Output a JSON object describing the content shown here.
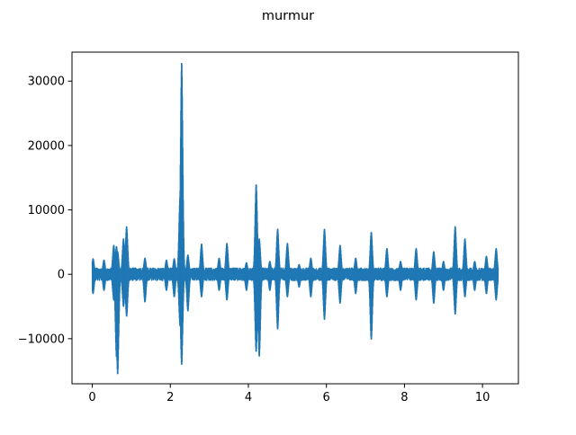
{
  "figure": {
    "title": "murmur"
  },
  "chart_data": {
    "type": "line",
    "title": "murmur",
    "xlabel": "",
    "ylabel": "",
    "xlim": [
      -0.52,
      10.92
    ],
    "ylim": [
      -17000,
      34500
    ],
    "xticks": [
      0,
      2,
      4,
      6,
      8,
      10
    ],
    "xtick_labels": [
      "0",
      "2",
      "4",
      "6",
      "8",
      "10"
    ],
    "yticks": [
      -10000,
      0,
      10000,
      20000,
      30000
    ],
    "ytick_labels": [
      "−10000",
      "0",
      "10000",
      "20000",
      "30000"
    ],
    "grid": false,
    "legend": "none",
    "series": [
      {
        "color": "#1f77b4",
        "x_range": [
          0,
          10.4
        ],
        "baseline_amplitude": 700,
        "peaks": [
          {
            "x": 0.02,
            "max": 2400,
            "min": -3000
          },
          {
            "x": 0.3,
            "max": 2200,
            "min": -2500
          },
          {
            "x": 0.55,
            "max": 4500,
            "min": -4000
          },
          {
            "x": 0.62,
            "max": 4300,
            "min": -12800
          },
          {
            "x": 0.65,
            "max": 3500,
            "min": -15500
          },
          {
            "x": 0.8,
            "max": 5500,
            "min": -5000
          },
          {
            "x": 0.88,
            "max": 7400,
            "min": -6500
          },
          {
            "x": 1.35,
            "max": 2500,
            "min": -4300
          },
          {
            "x": 1.9,
            "max": 2200,
            "min": -2500
          },
          {
            "x": 2.1,
            "max": 2400,
            "min": -3500
          },
          {
            "x": 2.25,
            "max": 12000,
            "min": -8000
          },
          {
            "x": 2.29,
            "max": 32800,
            "min": -14000
          },
          {
            "x": 2.45,
            "max": 3000,
            "min": -5700
          },
          {
            "x": 2.8,
            "max": 4700,
            "min": -3500
          },
          {
            "x": 3.25,
            "max": 2500,
            "min": -2500
          },
          {
            "x": 3.45,
            "max": 4800,
            "min": -4000
          },
          {
            "x": 3.95,
            "max": 1800,
            "min": -2500
          },
          {
            "x": 4.2,
            "max": 13900,
            "min": -12000
          },
          {
            "x": 4.28,
            "max": 5500,
            "min": -12700
          },
          {
            "x": 4.55,
            "max": 2000,
            "min": -2500
          },
          {
            "x": 4.75,
            "max": 7000,
            "min": -8500
          },
          {
            "x": 5.0,
            "max": 4800,
            "min": -3500
          },
          {
            "x": 5.3,
            "max": 1500,
            "min": -2000
          },
          {
            "x": 5.6,
            "max": 2500,
            "min": -3500
          },
          {
            "x": 5.95,
            "max": 7000,
            "min": -7000
          },
          {
            "x": 6.35,
            "max": 4500,
            "min": -4500
          },
          {
            "x": 6.75,
            "max": 2500,
            "min": -3000
          },
          {
            "x": 7.15,
            "max": 6500,
            "min": -10100
          },
          {
            "x": 7.55,
            "max": 4000,
            "min": -3500
          },
          {
            "x": 7.9,
            "max": 2000,
            "min": -2500
          },
          {
            "x": 8.3,
            "max": 4000,
            "min": -4000
          },
          {
            "x": 8.75,
            "max": 3500,
            "min": -4500
          },
          {
            "x": 9.0,
            "max": 2000,
            "min": -2500
          },
          {
            "x": 9.3,
            "max": 7400,
            "min": -6200
          },
          {
            "x": 9.55,
            "max": 5500,
            "min": -3500
          },
          {
            "x": 9.8,
            "max": 2000,
            "min": -2500
          },
          {
            "x": 10.1,
            "max": 2800,
            "min": -3000
          },
          {
            "x": 10.35,
            "max": 4000,
            "min": -4000
          }
        ]
      }
    ]
  }
}
